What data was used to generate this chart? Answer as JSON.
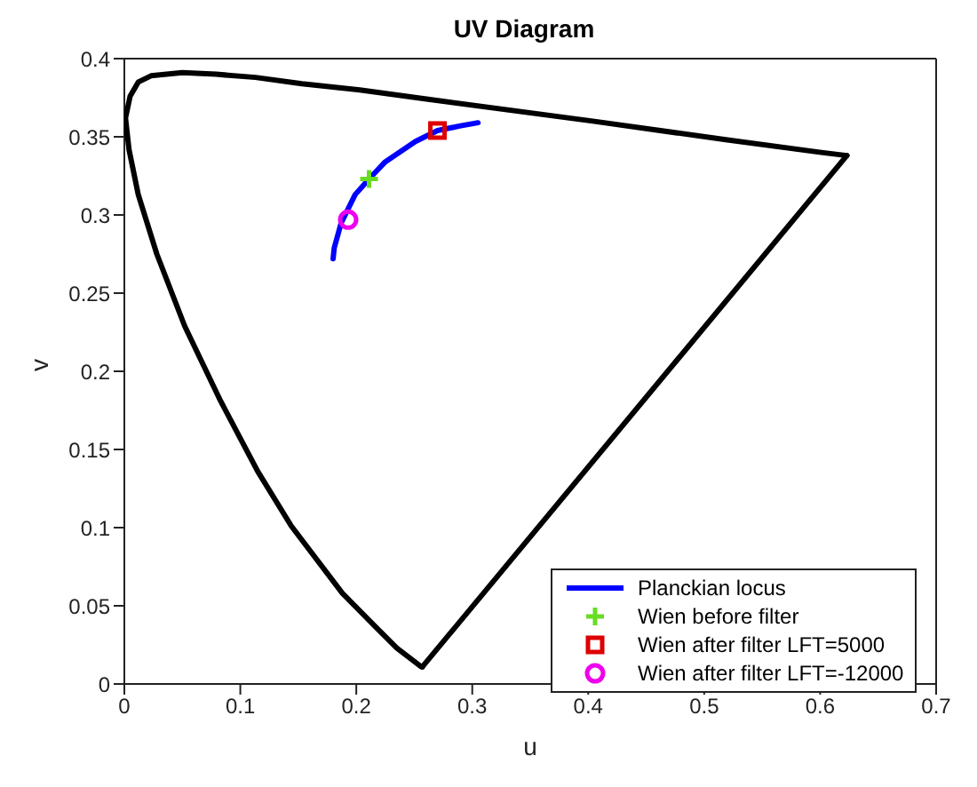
{
  "chart_data": {
    "type": "line",
    "title": "UV Diagram",
    "xlabel": "u",
    "ylabel": "v",
    "xlim": [
      0,
      0.7
    ],
    "xticks": [
      0,
      0.1,
      0.2,
      0.3,
      0.4,
      0.5,
      0.6,
      0.7
    ],
    "ylim": [
      0,
      0.4
    ],
    "yticks": [
      0,
      0.05,
      0.1,
      0.15,
      0.2,
      0.25,
      0.3,
      0.35,
      0.4
    ],
    "legend": "bottom right",
    "line_style": "solid",
    "series": [
      {
        "color": "#000000",
        "x": [
          0.623,
          0.257
        ],
        "values": [
          0.338,
          0.011
        ]
      },
      {
        "color": "#000000",
        "x": [
          0.257,
          0.256,
          0.235,
          0.216,
          0.188,
          0.144,
          0.115,
          0.083,
          0.052,
          0.028,
          0.012,
          0.004,
          0.001,
          0.005,
          0.012,
          0.023,
          0.05,
          0.079,
          0.113,
          0.153,
          0.203,
          0.262,
          0.404,
          0.52,
          0.601,
          0.623
        ],
        "values": [
          0.011,
          0.011,
          0.023,
          0.037,
          0.058,
          0.101,
          0.136,
          0.181,
          0.229,
          0.275,
          0.313,
          0.342,
          0.362,
          0.376,
          0.385,
          0.389,
          0.391,
          0.39,
          0.388,
          0.384,
          0.38,
          0.374,
          0.36,
          0.348,
          0.34,
          0.338
        ]
      },
      {
        "name": "Planckian locus",
        "color": "#0000ff",
        "x": [
          0.18,
          0.181,
          0.187,
          0.199,
          0.211,
          0.225,
          0.251,
          0.27,
          0.29,
          0.305
        ],
        "values": [
          0.272,
          0.279,
          0.295,
          0.313,
          0.323,
          0.334,
          0.347,
          0.354,
          0.357,
          0.359
        ]
      },
      {
        "type": "scatter",
        "name": "Wien before filter",
        "color": "#66dd22",
        "marker": "cross",
        "x": [
          0.211
        ],
        "values": [
          0.323
        ]
      },
      {
        "type": "scatter",
        "name": "Wien after filter LFT=5000",
        "color": "#dd0000",
        "marker": "square",
        "x": [
          0.27
        ],
        "values": [
          0.354
        ]
      },
      {
        "type": "scatter",
        "name": "Wien after filter LFT=-12000",
        "color": "#ee00ee",
        "marker": "circle",
        "x": [
          0.193
        ],
        "values": [
          0.297
        ]
      }
    ]
  }
}
